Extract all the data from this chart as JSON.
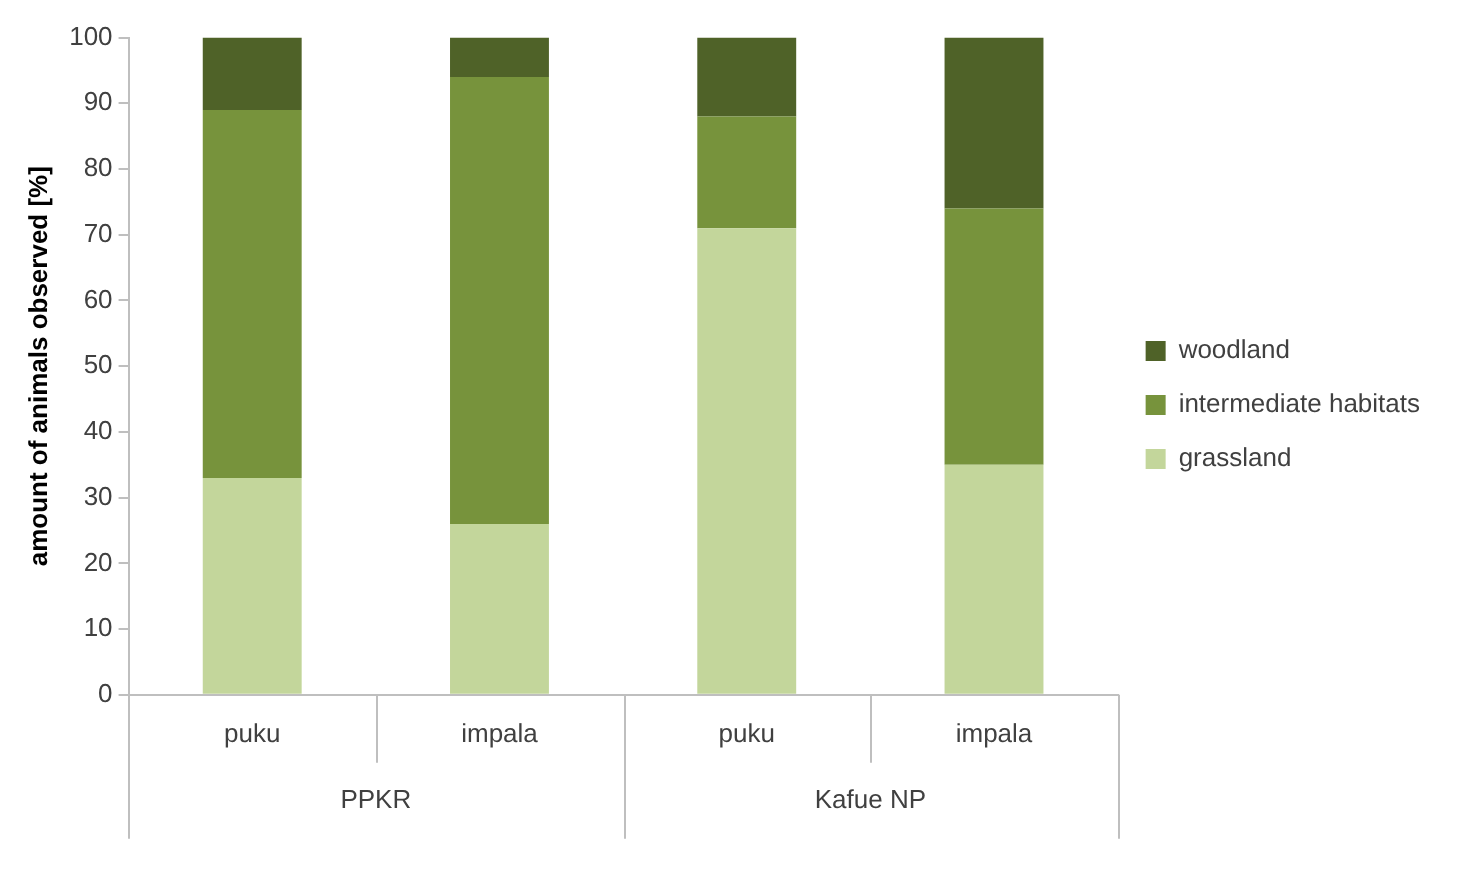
{
  "chart_data": {
    "type": "bar",
    "stacked": true,
    "ylabel": "amount of animals observed [%]",
    "categories": [
      "puku",
      "impala",
      "puku",
      "impala"
    ],
    "series": [
      {
        "name": "grassland",
        "color": "#c3d69b",
        "values": [
          33,
          26,
          71,
          35
        ]
      },
      {
        "name": "intermediate habitats",
        "color": "#77933c",
        "values": [
          56,
          68,
          17,
          39
        ]
      },
      {
        "name": "woodland",
        "color": "#4f6228",
        "values": [
          11,
          6,
          12,
          26
        ]
      }
    ],
    "ylim": [
      0,
      100
    ],
    "yticks": [
      0,
      10,
      20,
      30,
      40,
      50,
      60,
      70,
      80,
      90,
      100
    ],
    "grid": false,
    "legend": "right",
    "annotations": [
      "PPKR",
      "Kafue NP"
    ]
  }
}
